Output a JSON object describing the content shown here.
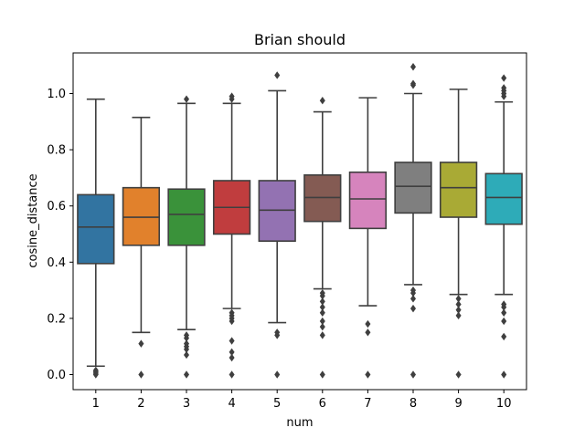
{
  "chart_data": {
    "type": "box",
    "title": "Brian should",
    "xlabel": "num",
    "ylabel": "cosine_distance",
    "ylim": [
      -0.05,
      1.13
    ],
    "yticks": [
      0.0,
      0.2,
      0.4,
      0.6,
      0.8,
      1.0
    ],
    "ytick_labels": [
      "0.0",
      "0.2",
      "0.4",
      "0.6",
      "0.8",
      "1.0"
    ],
    "grid": false,
    "categories": [
      "1",
      "2",
      "3",
      "4",
      "5",
      "6",
      "7",
      "8",
      "9",
      "10"
    ],
    "boxes": [
      {
        "category": "1",
        "color": "#3274a1",
        "whisker_low": 0.03,
        "q1": 0.395,
        "median": 0.525,
        "q3": 0.64,
        "whisker_high": 0.98,
        "outliers": [
          0.0,
          0.005,
          0.01,
          0.015
        ]
      },
      {
        "category": "2",
        "color": "#e1812c",
        "whisker_low": 0.15,
        "q1": 0.46,
        "median": 0.56,
        "q3": 0.665,
        "whisker_high": 0.915,
        "outliers": [
          0.0,
          0.11
        ]
      },
      {
        "category": "3",
        "color": "#3a923a",
        "whisker_low": 0.16,
        "q1": 0.46,
        "median": 0.57,
        "q3": 0.66,
        "whisker_high": 0.965,
        "outliers": [
          0.0,
          0.07,
          0.09,
          0.1,
          0.11,
          0.13,
          0.14,
          0.98
        ]
      },
      {
        "category": "4",
        "color": "#c03d3e",
        "whisker_low": 0.235,
        "q1": 0.5,
        "median": 0.595,
        "q3": 0.69,
        "whisker_high": 0.965,
        "outliers": [
          0.0,
          0.06,
          0.08,
          0.12,
          0.19,
          0.2,
          0.21,
          0.22,
          0.98,
          0.99
        ]
      },
      {
        "category": "5",
        "color": "#9372b2",
        "whisker_low": 0.185,
        "q1": 0.475,
        "median": 0.585,
        "q3": 0.69,
        "whisker_high": 1.01,
        "outliers": [
          0.0,
          0.14,
          0.15,
          1.065
        ]
      },
      {
        "category": "6",
        "color": "#845b53",
        "whisker_low": 0.305,
        "q1": 0.545,
        "median": 0.63,
        "q3": 0.71,
        "whisker_high": 0.935,
        "outliers": [
          0.0,
          0.14,
          0.17,
          0.19,
          0.22,
          0.24,
          0.26,
          0.28,
          0.29,
          0.975
        ]
      },
      {
        "category": "7",
        "color": "#d684bd",
        "whisker_low": 0.245,
        "q1": 0.52,
        "median": 0.625,
        "q3": 0.72,
        "whisker_high": 0.985,
        "outliers": [
          0.0,
          0.15,
          0.18
        ]
      },
      {
        "category": "8",
        "color": "#7f7f7f",
        "whisker_low": 0.32,
        "q1": 0.575,
        "median": 0.67,
        "q3": 0.755,
        "whisker_high": 1.0,
        "outliers": [
          0.0,
          0.235,
          0.27,
          0.29,
          0.3,
          1.03,
          1.035,
          1.095
        ]
      },
      {
        "category": "9",
        "color": "#a9aa35",
        "whisker_low": 0.285,
        "q1": 0.56,
        "median": 0.665,
        "q3": 0.755,
        "whisker_high": 1.015,
        "outliers": [
          0.0,
          0.21,
          0.23,
          0.25,
          0.27
        ]
      },
      {
        "category": "10",
        "color": "#2eabb8",
        "whisker_low": 0.285,
        "q1": 0.535,
        "median": 0.63,
        "q3": 0.715,
        "whisker_high": 0.97,
        "outliers": [
          0.0,
          0.135,
          0.19,
          0.22,
          0.24,
          0.25,
          0.99,
          1.0,
          1.01,
          1.02,
          1.055
        ]
      }
    ]
  }
}
